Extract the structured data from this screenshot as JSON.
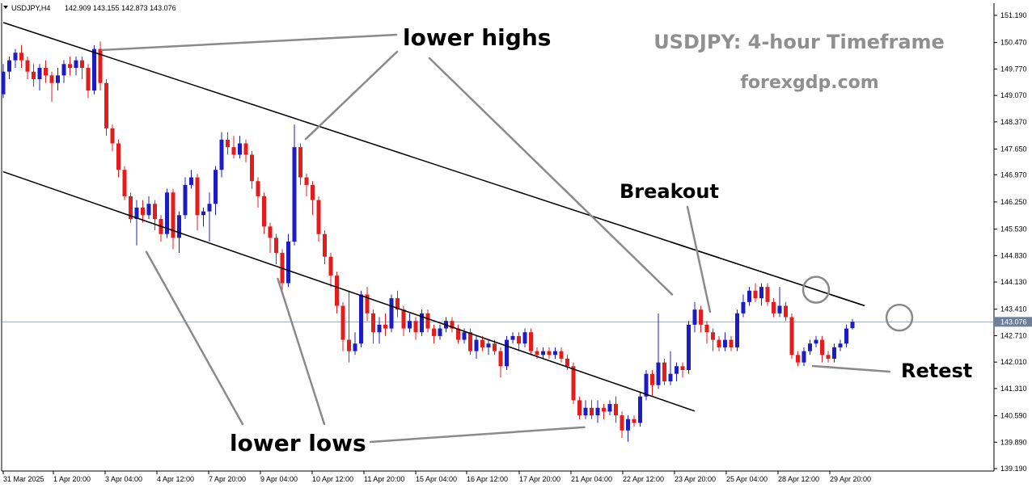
{
  "header": {
    "symbol_timeframe": "USDJPY,H4",
    "ohlc": "142.909 143.155 142.873 143.076"
  },
  "watermark": {
    "title": "USDJPY: 4-hour Timeframe",
    "site": "forexgdp.com"
  },
  "annotations": {
    "lower_highs": "lower highs",
    "lower_lows": "lower lows",
    "breakout": "Breakout",
    "retest": "Retest"
  },
  "colors": {
    "bull": "#1c1cc6",
    "bear": "#e51c1c",
    "channel": "#000000",
    "pointer": "#8a8a8a",
    "price_line": "#6e7f99"
  },
  "chart_data": {
    "type": "candlestick",
    "title": "",
    "y_ticks": [
      "151.190",
      "150.470",
      "149.770",
      "149.070",
      "148.370",
      "147.650",
      "146.970",
      "146.250",
      "145.530",
      "144.830",
      "144.130",
      "143.410",
      "142.710",
      "142.010",
      "141.310",
      "140.590",
      "139.890",
      "139.190"
    ],
    "ylim": [
      139.19,
      151.19
    ],
    "x_ticks": [
      "31 Mar 2025",
      "1 Apr 20:00",
      "3 Apr 04:00",
      "4 Apr 12:00",
      "7 Apr 20:00",
      "9 Apr 04:00",
      "10 Apr 12:00",
      "11 Apr 20:00",
      "15 Apr 04:00",
      "16 Apr 12:00",
      "17 Apr 20:00",
      "21 Apr 04:00",
      "22 Apr 12:00",
      "23 Apr 20:00",
      "25 Apr 04:00",
      "28 Apr 12:00",
      "29 Apr 20:00"
    ],
    "current_price": "143.076",
    "channel_upper": [
      [
        0,
        151.0
      ],
      [
        143,
        143.45
      ]
    ],
    "channel_lower": [
      [
        0,
        147.05
      ],
      [
        143,
        139.1
      ]
    ],
    "breakout_index": 134,
    "retest_index": 148,
    "candles": [
      [
        149.1,
        149.7,
        149.9,
        149.0
      ],
      [
        149.7,
        150.0,
        150.1,
        149.5
      ],
      [
        150.0,
        150.2,
        150.3,
        149.8
      ],
      [
        150.2,
        150.0,
        150.4,
        149.8
      ],
      [
        150.0,
        149.7,
        150.1,
        149.5
      ],
      [
        149.7,
        149.5,
        149.9,
        149.3
      ],
      [
        149.5,
        149.8,
        149.9,
        149.2
      ],
      [
        149.8,
        149.6,
        150.0,
        149.4
      ],
      [
        149.6,
        149.4,
        149.7,
        148.9
      ],
      [
        149.4,
        149.6,
        149.8,
        149.2
      ],
      [
        149.6,
        149.9,
        150.0,
        149.4
      ],
      [
        149.9,
        149.8,
        150.1,
        149.6
      ],
      [
        149.8,
        150.0,
        150.1,
        149.6
      ],
      [
        150.0,
        149.8,
        150.1,
        149.5
      ],
      [
        149.8,
        149.2,
        149.9,
        149.0
      ],
      [
        149.2,
        150.3,
        150.4,
        149.1
      ],
      [
        150.3,
        149.4,
        150.5,
        149.2
      ],
      [
        149.4,
        148.2,
        149.5,
        148.0
      ],
      [
        148.2,
        147.8,
        148.3,
        147.6
      ],
      [
        147.8,
        147.1,
        147.9,
        146.9
      ],
      [
        147.1,
        146.4,
        147.2,
        146.3
      ],
      [
        146.4,
        145.8,
        146.5,
        145.7
      ],
      [
        145.8,
        146.1,
        146.3,
        145.1
      ],
      [
        146.1,
        145.9,
        146.3,
        145.7
      ],
      [
        145.9,
        146.2,
        146.4,
        145.8
      ],
      [
        146.2,
        145.8,
        146.3,
        145.5
      ],
      [
        145.8,
        145.4,
        145.9,
        145.2
      ],
      [
        145.4,
        146.5,
        146.6,
        145.3
      ],
      [
        146.5,
        145.3,
        146.6,
        145.0
      ],
      [
        145.3,
        145.9,
        146.0,
        144.9
      ],
      [
        145.9,
        146.7,
        146.9,
        145.8
      ],
      [
        146.7,
        146.9,
        147.1,
        146.6
      ],
      [
        146.9,
        145.9,
        147.0,
        145.5
      ],
      [
        145.9,
        146.0,
        146.1,
        145.6
      ],
      [
        146.0,
        146.2,
        146.5,
        145.2
      ],
      [
        146.2,
        147.1,
        147.2,
        145.9
      ],
      [
        147.1,
        147.9,
        148.1,
        146.9
      ],
      [
        147.9,
        147.7,
        148.1,
        147.5
      ],
      [
        147.7,
        147.5,
        148.0,
        147.4
      ],
      [
        147.5,
        147.8,
        148.0,
        147.4
      ],
      [
        147.8,
        147.5,
        147.9,
        147.3
      ],
      [
        147.5,
        146.8,
        147.6,
        146.6
      ],
      [
        146.8,
        146.4,
        146.9,
        146.1
      ],
      [
        146.4,
        145.6,
        146.5,
        145.4
      ],
      [
        145.6,
        145.3,
        145.7,
        144.9
      ],
      [
        145.3,
        144.9,
        145.4,
        144.6
      ],
      [
        144.9,
        144.1,
        145.0,
        143.9
      ],
      [
        144.1,
        145.2,
        145.4,
        144.0
      ],
      [
        145.2,
        147.7,
        148.3,
        145.1
      ],
      [
        147.7,
        146.9,
        147.8,
        146.7
      ],
      [
        146.9,
        146.7,
        147.0,
        146.4
      ],
      [
        146.7,
        146.3,
        146.8,
        145.9
      ],
      [
        146.3,
        145.4,
        146.4,
        145.2
      ],
      [
        145.4,
        144.8,
        145.5,
        144.6
      ],
      [
        144.8,
        144.3,
        144.9,
        144.0
      ],
      [
        144.3,
        143.5,
        144.4,
        143.3
      ],
      [
        143.5,
        142.6,
        143.6,
        142.3
      ],
      [
        142.6,
        142.3,
        143.9,
        142.0
      ],
      [
        142.3,
        142.5,
        142.8,
        142.2
      ],
      [
        142.5,
        143.8,
        143.9,
        142.4
      ],
      [
        143.8,
        143.3,
        144.0,
        143.1
      ],
      [
        143.3,
        142.8,
        143.4,
        142.5
      ],
      [
        142.8,
        143.0,
        143.2,
        142.5
      ],
      [
        143.0,
        142.9,
        143.3,
        142.7
      ],
      [
        142.9,
        143.7,
        143.8,
        142.8
      ],
      [
        143.7,
        143.4,
        143.9,
        143.2
      ],
      [
        143.4,
        142.9,
        143.5,
        142.7
      ],
      [
        142.9,
        143.1,
        143.3,
        142.8
      ],
      [
        143.1,
        142.8,
        143.2,
        142.6
      ],
      [
        142.8,
        143.3,
        143.4,
        142.7
      ],
      [
        143.3,
        142.9,
        143.4,
        142.8
      ],
      [
        142.9,
        142.7,
        143.0,
        142.5
      ],
      [
        142.7,
        142.9,
        143.0,
        142.6
      ],
      [
        142.9,
        143.1,
        143.2,
        142.8
      ],
      [
        143.1,
        142.9,
        143.2,
        142.8
      ],
      [
        142.9,
        142.6,
        143.0,
        142.5
      ],
      [
        142.6,
        142.8,
        142.9,
        142.5
      ],
      [
        142.8,
        142.3,
        142.9,
        142.2
      ],
      [
        142.3,
        142.6,
        142.7,
        142.1
      ],
      [
        142.6,
        142.4,
        142.7,
        142.3
      ],
      [
        142.4,
        142.5,
        142.6,
        142.2
      ],
      [
        142.5,
        142.3,
        142.6,
        142.2
      ],
      [
        142.3,
        141.9,
        142.4,
        141.6
      ],
      [
        141.9,
        142.6,
        142.7,
        141.8
      ],
      [
        142.6,
        142.7,
        142.8,
        142.5
      ],
      [
        142.7,
        142.5,
        142.8,
        142.3
      ],
      [
        142.5,
        142.8,
        142.9,
        142.4
      ],
      [
        142.8,
        142.3,
        142.9,
        142.2
      ],
      [
        142.3,
        142.2,
        142.4,
        142.1
      ],
      [
        142.2,
        142.3,
        142.4,
        142.1
      ],
      [
        142.3,
        142.2,
        142.4,
        142.1
      ],
      [
        142.2,
        142.3,
        142.4,
        142.1
      ],
      [
        142.3,
        142.1,
        142.4,
        142.0
      ],
      [
        142.1,
        141.9,
        142.2,
        141.8
      ],
      [
        141.9,
        141.0,
        142.0,
        140.9
      ],
      [
        141.0,
        140.6,
        141.1,
        140.5
      ],
      [
        140.6,
        140.8,
        141.0,
        140.5
      ],
      [
        140.8,
        140.6,
        141.0,
        140.5
      ],
      [
        140.6,
        140.8,
        141.0,
        140.4
      ],
      [
        140.8,
        140.7,
        140.9,
        140.5
      ],
      [
        140.7,
        140.9,
        141.0,
        140.6
      ],
      [
        140.9,
        140.6,
        141.1,
        140.4
      ],
      [
        140.6,
        140.2,
        140.7,
        140.0
      ],
      [
        140.2,
        140.5,
        140.6,
        139.9
      ],
      [
        140.5,
        140.4,
        140.6,
        140.3
      ],
      [
        140.4,
        141.1,
        141.2,
        140.3
      ],
      [
        141.1,
        141.7,
        141.8,
        141.0
      ],
      [
        141.7,
        141.4,
        141.8,
        141.1
      ],
      [
        141.4,
        142.0,
        143.3,
        141.3
      ],
      [
        142.0,
        141.5,
        142.1,
        141.4
      ],
      [
        141.5,
        141.7,
        142.3,
        141.4
      ],
      [
        141.7,
        141.9,
        142.0,
        141.5
      ],
      [
        141.9,
        141.8,
        142.0,
        141.6
      ],
      [
        141.8,
        143.0,
        143.1,
        141.7
      ],
      [
        143.0,
        143.4,
        143.6,
        142.8
      ],
      [
        143.4,
        143.0,
        143.5,
        142.8
      ],
      [
        143.0,
        142.8,
        143.1,
        142.5
      ],
      [
        142.8,
        142.6,
        142.9,
        142.3
      ],
      [
        142.6,
        142.4,
        142.7,
        142.3
      ],
      [
        142.4,
        142.6,
        142.8,
        142.3
      ],
      [
        142.6,
        142.4,
        142.7,
        142.3
      ],
      [
        142.4,
        143.3,
        143.4,
        142.3
      ],
      [
        143.3,
        143.6,
        143.8,
        143.2
      ],
      [
        143.6,
        143.9,
        144.0,
        143.5
      ],
      [
        143.9,
        143.7,
        144.1,
        143.6
      ],
      [
        143.7,
        144.0,
        144.1,
        143.5
      ],
      [
        144.0,
        143.6,
        144.1,
        143.5
      ],
      [
        143.6,
        143.3,
        143.7,
        143.2
      ],
      [
        143.3,
        143.5,
        144.0,
        143.2
      ],
      [
        143.5,
        143.2,
        143.6,
        143.1
      ],
      [
        143.2,
        142.2,
        143.3,
        142.1
      ],
      [
        142.2,
        142.0,
        142.3,
        141.9
      ],
      [
        142.0,
        142.3,
        142.4,
        141.9
      ],
      [
        142.3,
        142.5,
        142.6,
        142.2
      ],
      [
        142.5,
        142.6,
        142.7,
        142.4
      ],
      [
        142.6,
        142.2,
        142.7,
        142.0
      ],
      [
        142.2,
        142.1,
        142.3,
        142.0
      ],
      [
        142.1,
        142.4,
        142.5,
        142.0
      ],
      [
        142.4,
        142.5,
        142.6,
        142.3
      ],
      [
        142.5,
        142.9,
        143.0,
        142.4
      ],
      [
        142.909,
        143.076,
        143.155,
        142.873
      ]
    ]
  }
}
